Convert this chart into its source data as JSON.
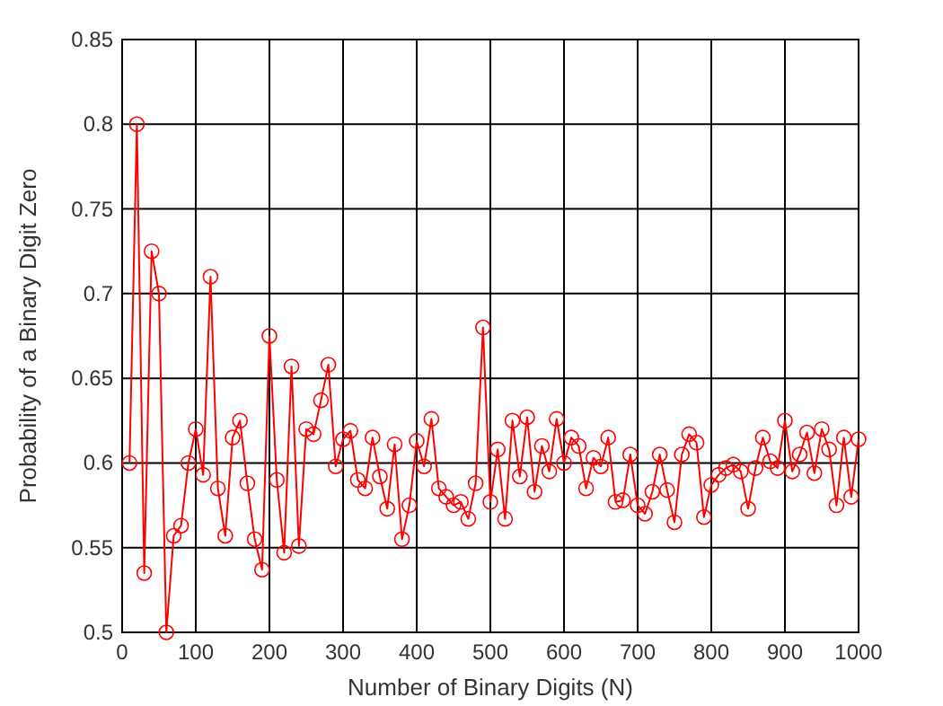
{
  "chart_data": {
    "type": "line",
    "xlabel": "Number of Binary Digits (N)",
    "ylabel": "Probability of a Binary Digit Zero",
    "xlim": [
      0,
      1000
    ],
    "xticks": [
      0,
      100,
      200,
      300,
      400,
      500,
      600,
      700,
      800,
      900,
      1000
    ],
    "ylim": [
      0.5,
      0.85
    ],
    "yticks": [
      0.5,
      0.55,
      0.6,
      0.65,
      0.7,
      0.75,
      0.8,
      0.85
    ],
    "grid": true,
    "marker": "circle",
    "line_style": "solid",
    "x": [
      10,
      20,
      30,
      40,
      50,
      60,
      70,
      80,
      90,
      100,
      110,
      120,
      130,
      140,
      150,
      160,
      170,
      180,
      190,
      200,
      210,
      220,
      230,
      240,
      250,
      260,
      270,
      280,
      290,
      300,
      310,
      320,
      330,
      340,
      350,
      360,
      370,
      380,
      390,
      400,
      410,
      420,
      430,
      440,
      450,
      460,
      470,
      480,
      490,
      500,
      510,
      520,
      530,
      540,
      550,
      560,
      570,
      580,
      590,
      600,
      610,
      620,
      630,
      640,
      650,
      660,
      670,
      680,
      690,
      700,
      710,
      720,
      730,
      740,
      750,
      760,
      770,
      780,
      790,
      800,
      810,
      820,
      830,
      840,
      850,
      860,
      870,
      880,
      890,
      900,
      910,
      920,
      930,
      940,
      950,
      960,
      970,
      980,
      990,
      1000
    ],
    "series": [
      {
        "color": "#ff0000",
        "values": [
          0.6,
          0.8,
          0.535,
          0.725,
          0.7,
          0.5,
          0.557,
          0.563,
          0.6,
          0.62,
          0.593,
          0.71,
          0.585,
          0.557,
          0.615,
          0.625,
          0.588,
          0.555,
          0.537,
          0.675,
          0.59,
          0.547,
          0.657,
          0.551,
          0.62,
          0.617,
          0.637,
          0.658,
          0.598,
          0.614,
          0.619,
          0.59,
          0.585,
          0.615,
          0.592,
          0.573,
          0.611,
          0.555,
          0.575,
          0.613,
          0.598,
          0.626,
          0.585,
          0.58,
          0.575,
          0.577,
          0.567,
          0.588,
          0.68,
          0.577,
          0.608,
          0.567,
          0.625,
          0.592,
          0.627,
          0.583,
          0.61,
          0.595,
          0.626,
          0.6,
          0.615,
          0.61,
          0.585,
          0.603,
          0.598,
          0.615,
          0.577,
          0.578,
          0.605,
          0.575,
          0.57,
          0.583,
          0.605,
          0.584,
          0.565,
          0.605,
          0.617,
          0.612,
          0.568,
          0.587,
          0.593,
          0.597,
          0.599,
          0.595,
          0.573,
          0.597,
          0.615,
          0.601,
          0.597,
          0.625,
          0.595,
          0.605,
          0.618,
          0.594,
          0.62,
          0.608,
          0.575,
          0.615,
          0.58,
          0.614
        ]
      }
    ]
  }
}
